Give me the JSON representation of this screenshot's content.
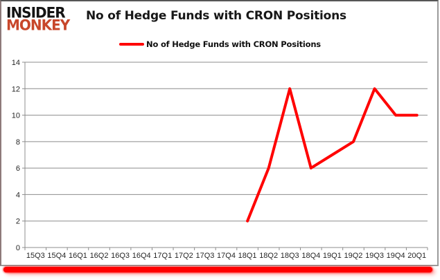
{
  "brand": {
    "line1": "INSIDER",
    "line2": "MONKEY",
    "monkey_color": "#C8472B",
    "insider_color": "#141414"
  },
  "header": {
    "title": "No of Hedge Funds with CRON Positions"
  },
  "legend": {
    "label": "No of Hedge Funds with CRON Positions",
    "swatch_color": "#FF0000"
  },
  "colors": {
    "series_line": "#FF0000",
    "gridline": "#8C8C8C",
    "axis": "#8C8C8C",
    "tick_text": "#262626",
    "bottom_accent_bar": "#FF0000",
    "card_border": "#9A9A9A"
  },
  "chart_data": {
    "type": "line",
    "title": "No of Hedge Funds with CRON Positions",
    "categories": [
      "15Q3",
      "15Q4",
      "16Q1",
      "16Q2",
      "16Q3",
      "16Q4",
      "17Q1",
      "17Q2",
      "17Q3",
      "17Q4",
      "18Q1",
      "18Q2",
      "18Q3",
      "18Q4",
      "19Q1",
      "19Q2",
      "19Q3",
      "19Q4",
      "20Q1"
    ],
    "series": [
      {
        "name": "No of Hedge Funds with CRON Positions",
        "color": "#FF0000",
        "values": [
          null,
          null,
          null,
          null,
          null,
          null,
          null,
          null,
          null,
          null,
          2,
          6,
          12,
          6,
          7,
          8,
          12,
          10,
          10
        ]
      }
    ],
    "xlabel": "",
    "ylabel": "",
    "ylim": [
      0,
      14
    ],
    "ytick_step": 2,
    "grid": true,
    "legend_position": "top"
  }
}
